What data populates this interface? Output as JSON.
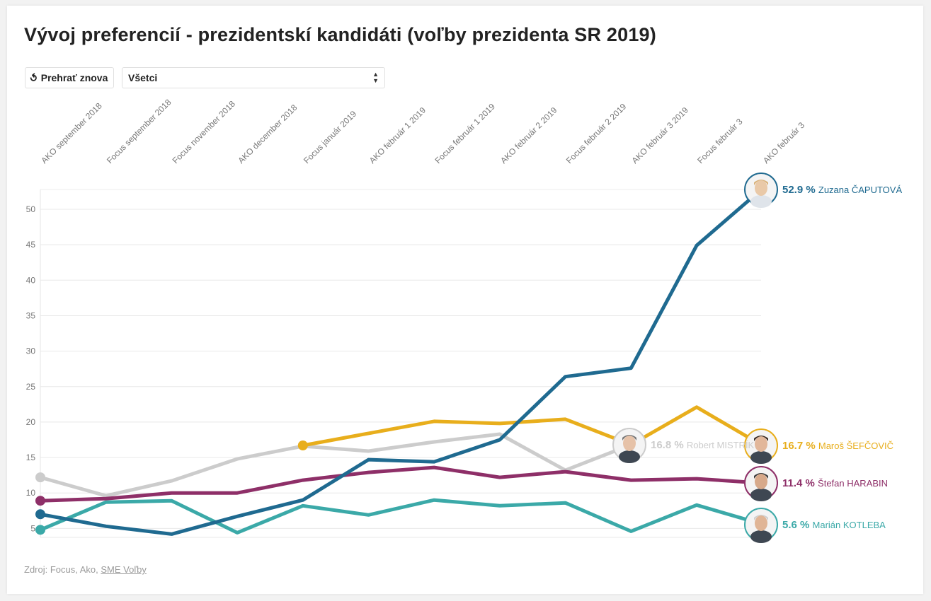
{
  "title": "Vývoj preferencií - prezidentskí kandidáti (voľby prezidenta SR 2019)",
  "controls": {
    "replay_label": "Prehrať znova",
    "replay_icon": "replay-icon",
    "filter_selected": "Všetci"
  },
  "source": {
    "prefix": "Zdroj: Focus, Ako, ",
    "link": "SME Voľby"
  },
  "chart_data": {
    "type": "line",
    "title": "Vývoj preferencií - prezidentskí kandidáti (voľby prezidenta SR 2019)",
    "categories": [
      "AKO september 2018",
      "Focus september 2018",
      "Focus november 2018",
      "AKO december 2018",
      "Focus január 2019",
      "AKO február 1 2019",
      "Focus február 1 2019",
      "AKO február 2 2019",
      "Focus február 2 2019",
      "AKO február 3 2019",
      "Focus február 3",
      "AKO február 3"
    ],
    "yticks": [
      5,
      10,
      15,
      20,
      25,
      30,
      35,
      40,
      45,
      50
    ],
    "ylim": [
      4,
      53
    ],
    "grid": true,
    "series": [
      {
        "name": "Zuzana ČAPUTOVÁ",
        "label": "52.9 %",
        "color": "#1f6a90",
        "values": [
          7.0,
          5.3,
          4.2,
          6.7,
          9.0,
          14.7,
          14.4,
          17.5,
          26.4,
          27.6,
          44.9,
          52.9
        ]
      },
      {
        "name": "Maroš ŠEFČOVIČ",
        "label": "16.7 %",
        "color": "#e8ae1c",
        "values": [
          null,
          null,
          null,
          null,
          16.7,
          18.4,
          20.1,
          19.8,
          20.4,
          16.8,
          22.1,
          16.7
        ]
      },
      {
        "name": "Robert MISTRÍK",
        "label": "16.8 %",
        "color": "#cccccc",
        "values": [
          12.2,
          9.6,
          11.7,
          14.8,
          16.6,
          15.9,
          17.2,
          18.3,
          13.2,
          16.8,
          null,
          null
        ]
      },
      {
        "name": "Štefan HARABIN",
        "label": "11.4 %",
        "color": "#8e2f68",
        "values": [
          8.9,
          9.2,
          10.0,
          10.0,
          11.8,
          12.9,
          13.6,
          12.2,
          13.0,
          11.8,
          12.0,
          11.4
        ]
      },
      {
        "name": "Marián KOTLEBA",
        "label": "5.6 %",
        "color": "#3ba9a8",
        "values": [
          4.8,
          8.7,
          8.9,
          4.4,
          8.2,
          6.9,
          9.0,
          8.2,
          8.6,
          4.6,
          8.3,
          5.6
        ]
      }
    ]
  }
}
